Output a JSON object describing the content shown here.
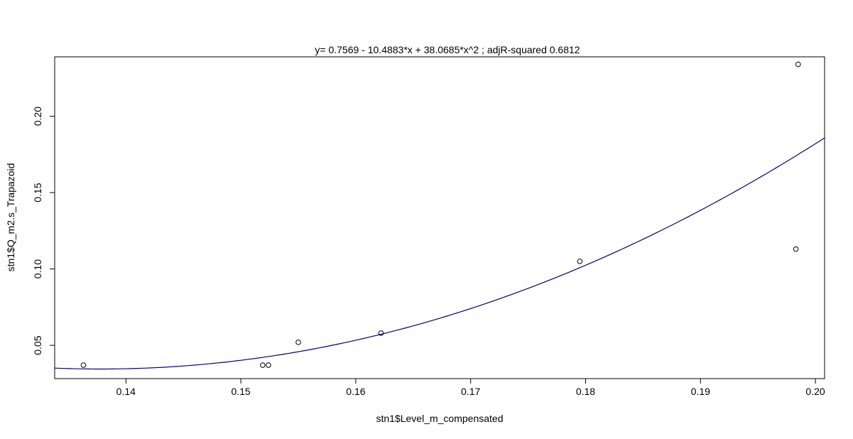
{
  "chart_data": {
    "type": "scatter",
    "title": "y=  0.7569  - 10.4883*x + 38.0685*x^2 ; adjR-squared 0.6812",
    "xlabel": "stn1$Level_m_compensated",
    "ylabel": "stn1$Q_m2.s_Trapazoid",
    "xlim": [
      0.1338,
      0.2008
    ],
    "ylim": [
      0.0282,
      0.2389
    ],
    "x_ticks": [
      "0.14",
      "0.15",
      "0.16",
      "0.17",
      "0.18",
      "0.19",
      "0.20"
    ],
    "y_ticks": [
      "0.05",
      "0.10",
      "0.15",
      "0.20"
    ],
    "points": [
      {
        "x": 0.1363,
        "y": 0.037
      },
      {
        "x": 0.1519,
        "y": 0.037
      },
      {
        "x": 0.1524,
        "y": 0.037
      },
      {
        "x": 0.155,
        "y": 0.052
      },
      {
        "x": 0.1622,
        "y": 0.058
      },
      {
        "x": 0.1795,
        "y": 0.105
      },
      {
        "x": 0.1983,
        "y": 0.113
      },
      {
        "x": 0.1985,
        "y": 0.234
      }
    ],
    "fit": {
      "a": 0.7569,
      "b": -10.4883,
      "c": 38.0685,
      "color": "#000080"
    },
    "point_color": "#000000",
    "grid": false,
    "legend": "none"
  }
}
